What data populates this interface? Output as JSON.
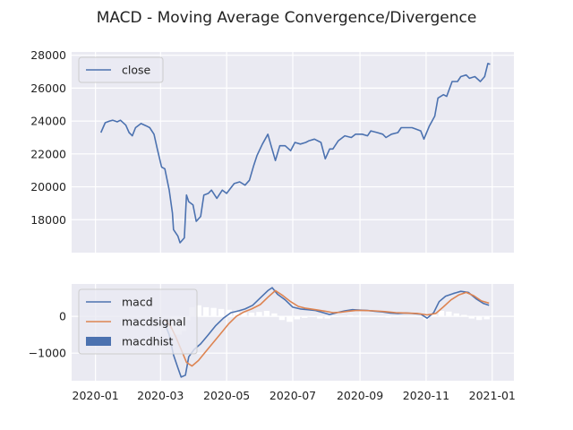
{
  "title": "MACD - Moving Average Convergence/Divergence",
  "x_tick_labels": [
    "2020-01",
    "2020-03",
    "2020-05",
    "2020-07",
    "2020-09",
    "2020-11",
    "2021-01"
  ],
  "chart_data": [
    {
      "type": "line",
      "ylim": [
        16000,
        28200
      ],
      "y_ticks": [
        18000,
        20000,
        22000,
        24000,
        26000,
        28000
      ],
      "grid": true,
      "legend": "top-left",
      "series": [
        {
          "name": "close",
          "color": "#4c72b0",
          "points": [
            [
              "2020-01-06",
              23300
            ],
            [
              "2020-01-08",
              23600
            ],
            [
              "2020-01-10",
              23900
            ],
            [
              "2020-01-14",
              24000
            ],
            [
              "2020-01-17",
              24050
            ],
            [
              "2020-01-21",
              23950
            ],
            [
              "2020-01-24",
              24050
            ],
            [
              "2020-01-29",
              23750
            ],
            [
              "2020-02-01",
              23300
            ],
            [
              "2020-02-04",
              23100
            ],
            [
              "2020-02-07",
              23600
            ],
            [
              "2020-02-12",
              23850
            ],
            [
              "2020-02-17",
              23700
            ],
            [
              "2020-02-20",
              23600
            ],
            [
              "2020-02-24",
              23200
            ],
            [
              "2020-02-27",
              22300
            ],
            [
              "2020-03-02",
              21200
            ],
            [
              "2020-03-05",
              21100
            ],
            [
              "2020-03-09",
              19800
            ],
            [
              "2020-03-12",
              18400
            ],
            [
              "2020-03-13",
              17400
            ],
            [
              "2020-03-17",
              17000
            ],
            [
              "2020-03-19",
              16600
            ],
            [
              "2020-03-23",
              16900
            ],
            [
              "2020-03-25",
              19500
            ],
            [
              "2020-03-27",
              19100
            ],
            [
              "2020-03-31",
              18900
            ],
            [
              "2020-04-03",
              17900
            ],
            [
              "2020-04-07",
              18200
            ],
            [
              "2020-04-10",
              19500
            ],
            [
              "2020-04-14",
              19600
            ],
            [
              "2020-04-17",
              19800
            ],
            [
              "2020-04-22",
              19300
            ],
            [
              "2020-04-27",
              19800
            ],
            [
              "2020-05-01",
              19600
            ],
            [
              "2020-05-08",
              20200
            ],
            [
              "2020-05-13",
              20300
            ],
            [
              "2020-05-18",
              20100
            ],
            [
              "2020-05-22",
              20400
            ],
            [
              "2020-05-26",
              21300
            ],
            [
              "2020-05-29",
              21900
            ],
            [
              "2020-06-03",
              22600
            ],
            [
              "2020-06-08",
              23200
            ],
            [
              "2020-06-11",
              22500
            ],
            [
              "2020-06-15",
              21600
            ],
            [
              "2020-06-19",
              22500
            ],
            [
              "2020-06-24",
              22500
            ],
            [
              "2020-06-29",
              22200
            ],
            [
              "2020-07-03",
              22700
            ],
            [
              "2020-07-08",
              22600
            ],
            [
              "2020-07-13",
              22700
            ],
            [
              "2020-07-16",
              22800
            ],
            [
              "2020-07-21",
              22900
            ],
            [
              "2020-07-27",
              22700
            ],
            [
              "2020-07-31",
              21700
            ],
            [
              "2020-08-04",
              22300
            ],
            [
              "2020-08-07",
              22300
            ],
            [
              "2020-08-12",
              22800
            ],
            [
              "2020-08-18",
              23100
            ],
            [
              "2020-08-24",
              23000
            ],
            [
              "2020-08-28",
              23200
            ],
            [
              "2020-09-03",
              23200
            ],
            [
              "2020-09-08",
              23100
            ],
            [
              "2020-09-11",
              23400
            ],
            [
              "2020-09-17",
              23300
            ],
            [
              "2020-09-22",
              23200
            ],
            [
              "2020-09-25",
              23000
            ],
            [
              "2020-09-30",
              23200
            ],
            [
              "2020-10-06",
              23300
            ],
            [
              "2020-10-09",
              23600
            ],
            [
              "2020-10-14",
              23600
            ],
            [
              "2020-10-19",
              23600
            ],
            [
              "2020-10-23",
              23500
            ],
            [
              "2020-10-27",
              23400
            ],
            [
              "2020-10-30",
              22900
            ],
            [
              "2020-11-04",
              23700
            ],
            [
              "2020-11-09",
              24300
            ],
            [
              "2020-11-12",
              25400
            ],
            [
              "2020-11-17",
              25600
            ],
            [
              "2020-11-20",
              25500
            ],
            [
              "2020-11-25",
              26400
            ],
            [
              "2020-11-30",
              26400
            ],
            [
              "2020-12-03",
              26700
            ],
            [
              "2020-12-08",
              26800
            ],
            [
              "2020-12-11",
              26600
            ],
            [
              "2020-12-16",
              26700
            ],
            [
              "2020-12-21",
              26400
            ],
            [
              "2020-12-25",
              26700
            ],
            [
              "2020-12-28",
              27500
            ],
            [
              "2020-12-30",
              27450
            ]
          ]
        }
      ]
    },
    {
      "type": "line",
      "ylim": [
        -1750,
        880
      ],
      "y_ticks": [
        -1000,
        0
      ],
      "grid": true,
      "legend": "top-left",
      "series": [
        {
          "name": "macd",
          "color": "#4c72b0",
          "points": [
            [
              "2020-03-05",
              -200
            ],
            [
              "2020-03-09",
              -500
            ],
            [
              "2020-03-13",
              -1050
            ],
            [
              "2020-03-17",
              -1400
            ],
            [
              "2020-03-20",
              -1650
            ],
            [
              "2020-03-24",
              -1600
            ],
            [
              "2020-03-27",
              -1100
            ],
            [
              "2020-04-01",
              -900
            ],
            [
              "2020-04-07",
              -750
            ],
            [
              "2020-04-14",
              -500
            ],
            [
              "2020-04-21",
              -250
            ],
            [
              "2020-04-28",
              -50
            ],
            [
              "2020-05-05",
              100
            ],
            [
              "2020-05-12",
              150
            ],
            [
              "2020-05-18",
              200
            ],
            [
              "2020-05-25",
              300
            ],
            [
              "2020-06-01",
              500
            ],
            [
              "2020-06-08",
              700
            ],
            [
              "2020-06-12",
              780
            ],
            [
              "2020-06-17",
              600
            ],
            [
              "2020-06-24",
              450
            ],
            [
              "2020-07-01",
              250
            ],
            [
              "2020-07-08",
              200
            ],
            [
              "2020-07-15",
              180
            ],
            [
              "2020-07-22",
              160
            ],
            [
              "2020-07-29",
              100
            ],
            [
              "2020-08-04",
              50
            ],
            [
              "2020-08-11",
              100
            ],
            [
              "2020-08-18",
              150
            ],
            [
              "2020-08-25",
              180
            ],
            [
              "2020-09-01",
              170
            ],
            [
              "2020-09-08",
              160
            ],
            [
              "2020-09-15",
              140
            ],
            [
              "2020-09-22",
              120
            ],
            [
              "2020-09-29",
              90
            ],
            [
              "2020-10-06",
              80
            ],
            [
              "2020-10-13",
              90
            ],
            [
              "2020-10-20",
              80
            ],
            [
              "2020-10-27",
              60
            ],
            [
              "2020-11-02",
              -50
            ],
            [
              "2020-11-08",
              100
            ],
            [
              "2020-11-13",
              400
            ],
            [
              "2020-11-19",
              550
            ],
            [
              "2020-11-26",
              620
            ],
            [
              "2020-12-03",
              680
            ],
            [
              "2020-12-10",
              650
            ],
            [
              "2020-12-17",
              480
            ],
            [
              "2020-12-24",
              350
            ],
            [
              "2020-12-29",
              300
            ]
          ]
        },
        {
          "name": "macdsignal",
          "color": "#dd8452",
          "points": [
            [
              "2020-03-05",
              -100
            ],
            [
              "2020-03-10",
              -250
            ],
            [
              "2020-03-15",
              -550
            ],
            [
              "2020-03-20",
              -900
            ],
            [
              "2020-03-25",
              -1250
            ],
            [
              "2020-03-30",
              -1350
            ],
            [
              "2020-04-05",
              -1200
            ],
            [
              "2020-04-12",
              -950
            ],
            [
              "2020-04-19",
              -700
            ],
            [
              "2020-04-26",
              -450
            ],
            [
              "2020-05-03",
              -200
            ],
            [
              "2020-05-10",
              0
            ],
            [
              "2020-05-17",
              120
            ],
            [
              "2020-05-24",
              200
            ],
            [
              "2020-06-01",
              320
            ],
            [
              "2020-06-08",
              520
            ],
            [
              "2020-06-15",
              700
            ],
            [
              "2020-06-22",
              560
            ],
            [
              "2020-06-29",
              400
            ],
            [
              "2020-07-06",
              270
            ],
            [
              "2020-07-13",
              220
            ],
            [
              "2020-07-22",
              180
            ],
            [
              "2020-07-31",
              140
            ],
            [
              "2020-08-07",
              100
            ],
            [
              "2020-08-14",
              110
            ],
            [
              "2020-08-21",
              140
            ],
            [
              "2020-08-28",
              160
            ],
            [
              "2020-09-04",
              160
            ],
            [
              "2020-09-14",
              150
            ],
            [
              "2020-09-24",
              130
            ],
            [
              "2020-10-04",
              100
            ],
            [
              "2020-10-14",
              90
            ],
            [
              "2020-10-24",
              80
            ],
            [
              "2020-11-02",
              40
            ],
            [
              "2020-11-10",
              80
            ],
            [
              "2020-11-17",
              260
            ],
            [
              "2020-11-24",
              450
            ],
            [
              "2020-12-01",
              580
            ],
            [
              "2020-12-08",
              650
            ],
            [
              "2020-12-15",
              560
            ],
            [
              "2020-12-22",
              420
            ],
            [
              "2020-12-29",
              360
            ]
          ]
        }
      ],
      "bars": {
        "name": "macdhist",
        "color": "#4c72b0",
        "points": [
          [
            "2020-03-13",
            -500
          ],
          [
            "2020-03-18",
            -500
          ],
          [
            "2020-03-22",
            -400
          ],
          [
            "2020-03-26",
            -100
          ],
          [
            "2020-03-30",
            250
          ],
          [
            "2020-04-05",
            300
          ],
          [
            "2020-04-12",
            250
          ],
          [
            "2020-04-19",
            230
          ],
          [
            "2020-04-26",
            200
          ],
          [
            "2020-05-03",
            180
          ],
          [
            "2020-05-10",
            160
          ],
          [
            "2020-05-17",
            100
          ],
          [
            "2020-05-24",
            100
          ],
          [
            "2020-05-31",
            120
          ],
          [
            "2020-06-07",
            150
          ],
          [
            "2020-06-14",
            80
          ],
          [
            "2020-06-21",
            -100
          ],
          [
            "2020-06-28",
            -150
          ],
          [
            "2020-07-05",
            -80
          ],
          [
            "2020-07-12",
            -40
          ],
          [
            "2020-07-19",
            -20
          ],
          [
            "2020-07-26",
            -60
          ],
          [
            "2020-08-02",
            -60
          ],
          [
            "2020-08-09",
            -20
          ],
          [
            "2020-08-16",
            20
          ],
          [
            "2020-08-23",
            30
          ],
          [
            "2020-08-30",
            20
          ],
          [
            "2020-09-06",
            0
          ],
          [
            "2020-09-13",
            -10
          ],
          [
            "2020-09-20",
            -20
          ],
          [
            "2020-09-27",
            -30
          ],
          [
            "2020-10-04",
            -20
          ],
          [
            "2020-10-11",
            0
          ],
          [
            "2020-10-18",
            -10
          ],
          [
            "2020-10-25",
            -20
          ],
          [
            "2020-11-01",
            -80
          ],
          [
            "2020-11-08",
            60
          ],
          [
            "2020-11-15",
            150
          ],
          [
            "2020-11-22",
            130
          ],
          [
            "2020-11-29",
            80
          ],
          [
            "2020-12-06",
            40
          ],
          [
            "2020-12-13",
            -60
          ],
          [
            "2020-12-20",
            -100
          ],
          [
            "2020-12-27",
            -80
          ]
        ]
      }
    }
  ]
}
